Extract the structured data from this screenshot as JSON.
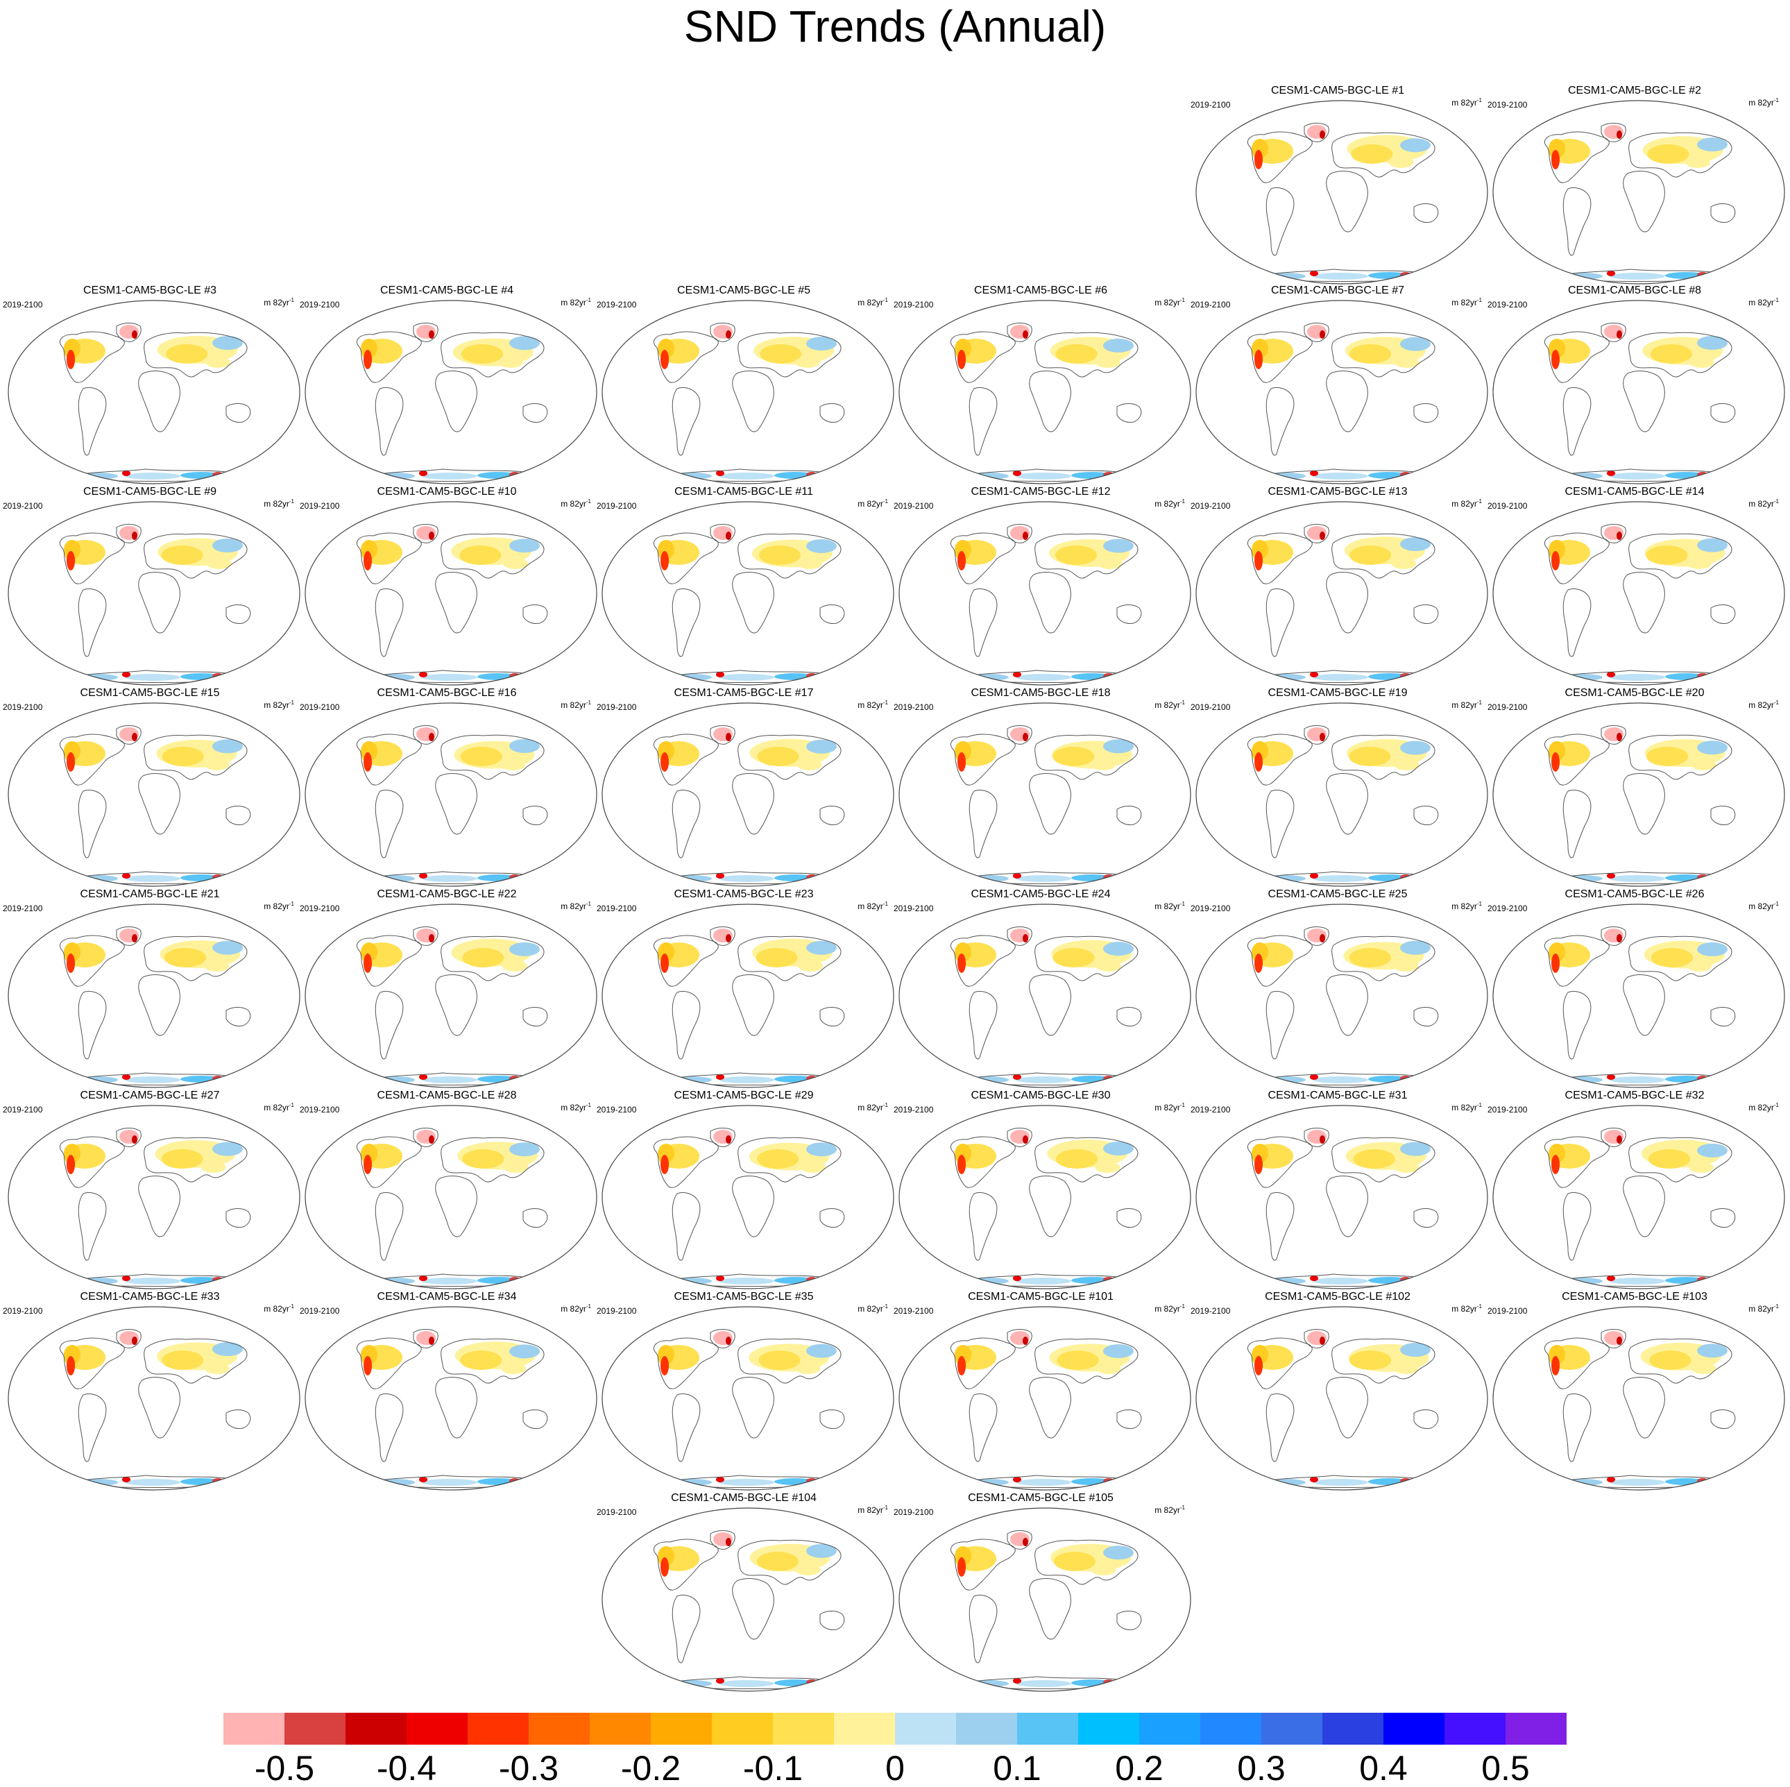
{
  "title": "SND Trends (Annual)",
  "period_label": "2019-2100",
  "units": {
    "prefix": "m 82yr",
    "superscript": "-1"
  },
  "panels": [
    {
      "title": "CESM1-CAM5-BGC-LE #1"
    },
    {
      "title": "CESM1-CAM5-BGC-LE #2"
    },
    {
      "title": "CESM1-CAM5-BGC-LE #3"
    },
    {
      "title": "CESM1-CAM5-BGC-LE #4"
    },
    {
      "title": "CESM1-CAM5-BGC-LE #5"
    },
    {
      "title": "CESM1-CAM5-BGC-LE #6"
    },
    {
      "title": "CESM1-CAM5-BGC-LE #7"
    },
    {
      "title": "CESM1-CAM5-BGC-LE #8"
    },
    {
      "title": "CESM1-CAM5-BGC-LE #9"
    },
    {
      "title": "CESM1-CAM5-BGC-LE #10"
    },
    {
      "title": "CESM1-CAM5-BGC-LE #11"
    },
    {
      "title": "CESM1-CAM5-BGC-LE #12"
    },
    {
      "title": "CESM1-CAM5-BGC-LE #13"
    },
    {
      "title": "CESM1-CAM5-BGC-LE #14"
    },
    {
      "title": "CESM1-CAM5-BGC-LE #15"
    },
    {
      "title": "CESM1-CAM5-BGC-LE #16"
    },
    {
      "title": "CESM1-CAM5-BGC-LE #17"
    },
    {
      "title": "CESM1-CAM5-BGC-LE #18"
    },
    {
      "title": "CESM1-CAM5-BGC-LE #19"
    },
    {
      "title": "CESM1-CAM5-BGC-LE #20"
    },
    {
      "title": "CESM1-CAM5-BGC-LE #21"
    },
    {
      "title": "CESM1-CAM5-BGC-LE #22"
    },
    {
      "title": "CESM1-CAM5-BGC-LE #23"
    },
    {
      "title": "CESM1-CAM5-BGC-LE #24"
    },
    {
      "title": "CESM1-CAM5-BGC-LE #25"
    },
    {
      "title": "CESM1-CAM5-BGC-LE #26"
    },
    {
      "title": "CESM1-CAM5-BGC-LE #27"
    },
    {
      "title": "CESM1-CAM5-BGC-LE #28"
    },
    {
      "title": "CESM1-CAM5-BGC-LE #29"
    },
    {
      "title": "CESM1-CAM5-BGC-LE #30"
    },
    {
      "title": "CESM1-CAM5-BGC-LE #31"
    },
    {
      "title": "CESM1-CAM5-BGC-LE #32"
    },
    {
      "title": "CESM1-CAM5-BGC-LE #33"
    },
    {
      "title": "CESM1-CAM5-BGC-LE #34"
    },
    {
      "title": "CESM1-CAM5-BGC-LE #35"
    },
    {
      "title": "CESM1-CAM5-BGC-LE #101"
    },
    {
      "title": "CESM1-CAM5-BGC-LE #102"
    },
    {
      "title": "CESM1-CAM5-BGC-LE #103"
    },
    {
      "title": "CESM1-CAM5-BGC-LE #104"
    },
    {
      "title": "CESM1-CAM5-BGC-LE #105"
    }
  ],
  "colorbar": {
    "colors": [
      "#ffb3b3",
      "#d94040",
      "#cc0000",
      "#ee0000",
      "#ff3300",
      "#ff6600",
      "#ff8800",
      "#ffaa00",
      "#ffcc22",
      "#ffe050",
      "#fff29a",
      "#bde1f5",
      "#9dd0ee",
      "#58c3f5",
      "#00bfff",
      "#1aa0ff",
      "#2288ff",
      "#3a6ee6",
      "#2a40e0",
      "#0000ff",
      "#4410ff",
      "#8020e6"
    ],
    "labels": [
      "-0.5",
      "-0.4",
      "-0.3",
      "-0.2",
      "-0.1",
      "0",
      "0.1",
      "0.2",
      "0.3",
      "0.4",
      "0.5"
    ]
  }
}
